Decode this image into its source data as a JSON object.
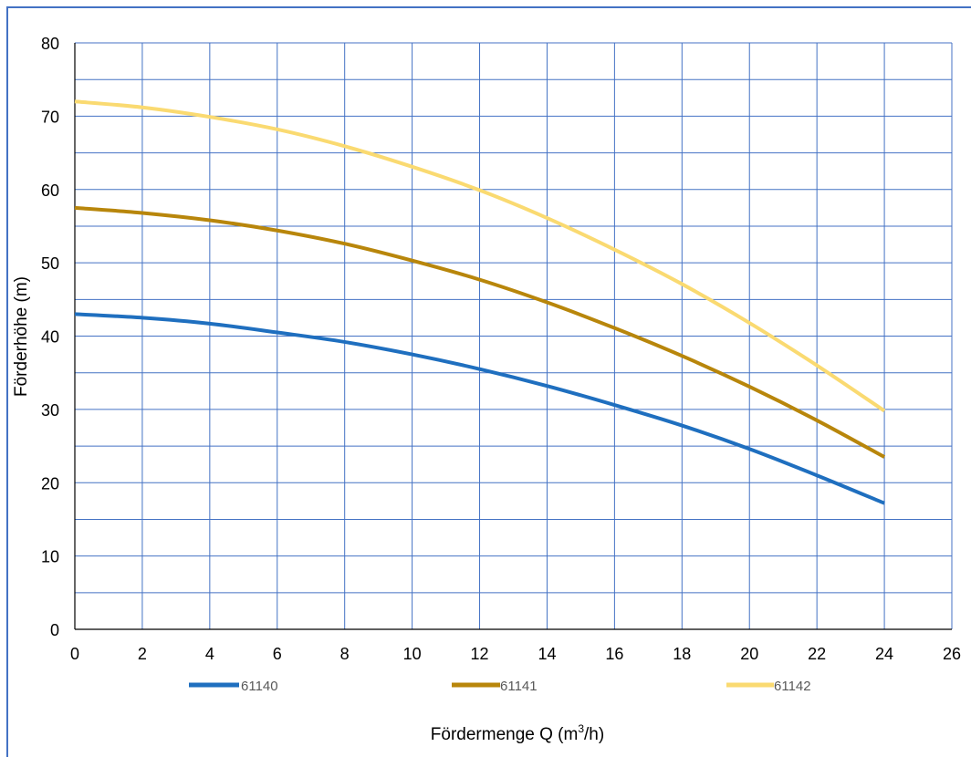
{
  "colors": {
    "frame": "#4472C4",
    "grid": "#4472C4",
    "axis": "#000000",
    "text": "#000000",
    "legend_text": "#595959"
  },
  "chart_data": {
    "type": "line",
    "title": "",
    "xlabel_main": "Fördermenge Q (m",
    "xlabel_sup": "3",
    "xlabel_tail": "/h)",
    "ylabel": "Förderhöhe (m)",
    "xlim": [
      0,
      26
    ],
    "ylim": [
      0,
      80
    ],
    "x_ticks": [
      "0",
      "2",
      "4",
      "6",
      "8",
      "10",
      "12",
      "14",
      "16",
      "18",
      "20",
      "22",
      "24",
      "26"
    ],
    "y_ticks": [
      "0",
      "10",
      "20",
      "30",
      "40",
      "50",
      "60",
      "70",
      "80"
    ],
    "grid": true,
    "legend_position": "bottom",
    "series": [
      {
        "name": "61140",
        "color": "#1F6FBF",
        "points": [
          [
            0,
            43
          ],
          [
            2,
            42.5
          ],
          [
            4,
            41.7
          ],
          [
            6,
            40.5
          ],
          [
            8,
            39.2
          ],
          [
            10,
            37.5
          ],
          [
            12,
            35.5
          ],
          [
            14,
            33.2
          ],
          [
            16,
            30.6
          ],
          [
            18,
            27.8
          ],
          [
            20,
            24.6
          ],
          [
            22,
            21
          ],
          [
            24,
            17.2
          ]
        ]
      },
      {
        "name": "61141",
        "color": "#B8860B",
        "points": [
          [
            0,
            57.5
          ],
          [
            2,
            56.8
          ],
          [
            4,
            55.8
          ],
          [
            6,
            54.4
          ],
          [
            8,
            52.6
          ],
          [
            10,
            50.3
          ],
          [
            12,
            47.7
          ],
          [
            14,
            44.6
          ],
          [
            16,
            41.1
          ],
          [
            18,
            37.3
          ],
          [
            20,
            33.1
          ],
          [
            22,
            28.5
          ],
          [
            24,
            23.5
          ]
        ]
      },
      {
        "name": "61142",
        "color": "#FADA71",
        "points": [
          [
            0,
            72
          ],
          [
            2,
            71.2
          ],
          [
            4,
            69.9
          ],
          [
            6,
            68.2
          ],
          [
            8,
            65.9
          ],
          [
            10,
            63.1
          ],
          [
            12,
            59.9
          ],
          [
            14,
            56.1
          ],
          [
            16,
            51.8
          ],
          [
            18,
            47.1
          ],
          [
            20,
            41.8
          ],
          [
            22,
            36
          ],
          [
            24,
            29.8
          ]
        ]
      }
    ]
  }
}
